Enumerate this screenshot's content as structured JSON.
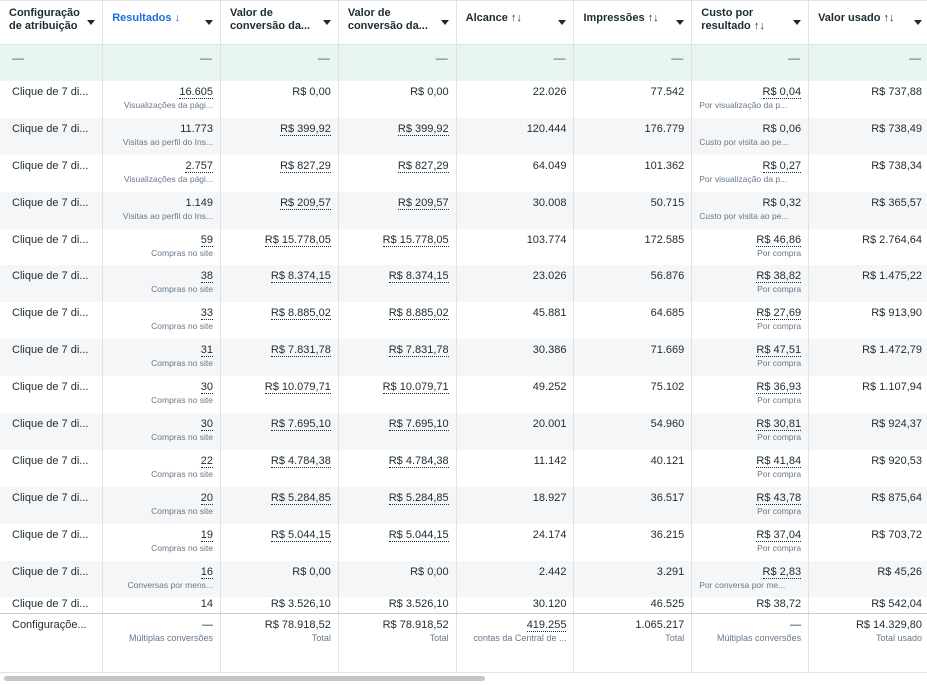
{
  "headers": [
    {
      "label": "Configuração de atribuição",
      "sort": "",
      "sorted": false
    },
    {
      "label": "Resultados",
      "sort": "↓",
      "sorted": true
    },
    {
      "label": "Valor de conversão da...",
      "sort": "",
      "sorted": false
    },
    {
      "label": "Valor de conversão da...",
      "sort": "",
      "sorted": false
    },
    {
      "label": "Alcance",
      "sort": "↑↓",
      "sorted": false
    },
    {
      "label": "Impressões",
      "sort": "↑↓",
      "sorted": false
    },
    {
      "label": "Custo por resultado",
      "sort": "↑↓",
      "sorted": false
    },
    {
      "label": "Valor usado",
      "sort": "↑↓",
      "sorted": false
    }
  ],
  "summary_top": [
    "—",
    "—",
    "—",
    "—",
    "—",
    "—",
    "—",
    "—"
  ],
  "rows": [
    {
      "attr": "Clique de 7 di...",
      "res": "16.605",
      "res_sub": "Visualizações da pági...",
      "cv1": "R$ 0,00",
      "cv2": "R$ 0,00",
      "reach": "22.026",
      "impr": "77.542",
      "cpr": "R$ 0,04",
      "cpr_sub": "Por visualização da p...",
      "spent": "R$ 737,88"
    },
    {
      "attr": "Clique de 7 di...",
      "res": "11.773",
      "res_sub": "Visitas ao perfil do Ins...",
      "cv1": "R$ 399,92",
      "cv2": "R$ 399,92",
      "reach": "120.444",
      "impr": "176.779",
      "cpr": "R$ 0,06",
      "cpr_sub": "Custo por visita ao pe...",
      "spent": "R$ 738,49"
    },
    {
      "attr": "Clique de 7 di...",
      "res": "2.757",
      "res_sub": "Visualizações da pági...",
      "cv1": "R$ 827,29",
      "cv2": "R$ 827,29",
      "reach": "64.049",
      "impr": "101.362",
      "cpr": "R$ 0,27",
      "cpr_sub": "Por visualização da p...",
      "spent": "R$ 738,34"
    },
    {
      "attr": "Clique de 7 di...",
      "res": "1.149",
      "res_sub": "Visitas ao perfil do Ins...",
      "cv1": "R$ 209,57",
      "cv2": "R$ 209,57",
      "reach": "30.008",
      "impr": "50.715",
      "cpr": "R$ 0,32",
      "cpr_sub": "Custo por visita ao pe...",
      "spent": "R$ 365,57"
    },
    {
      "attr": "Clique de 7 di...",
      "res": "59",
      "res_sub": "Compras no site",
      "cv1": "R$ 15.778,05",
      "cv2": "R$ 15.778,05",
      "reach": "103.774",
      "impr": "172.585",
      "cpr": "R$ 46,86",
      "cpr_sub": "Por compra",
      "spent": "R$ 2.764,64"
    },
    {
      "attr": "Clique de 7 di...",
      "res": "38",
      "res_sub": "Compras no site",
      "cv1": "R$ 8.374,15",
      "cv2": "R$ 8.374,15",
      "reach": "23.026",
      "impr": "56.876",
      "cpr": "R$ 38,82",
      "cpr_sub": "Por compra",
      "spent": "R$ 1.475,22"
    },
    {
      "attr": "Clique de 7 di...",
      "res": "33",
      "res_sub": "Compras no site",
      "cv1": "R$ 8.885,02",
      "cv2": "R$ 8.885,02",
      "reach": "45.881",
      "impr": "64.685",
      "cpr": "R$ 27,69",
      "cpr_sub": "Por compra",
      "spent": "R$ 913,90"
    },
    {
      "attr": "Clique de 7 di...",
      "res": "31",
      "res_sub": "Compras no site",
      "cv1": "R$ 7.831,78",
      "cv2": "R$ 7.831,78",
      "reach": "30.386",
      "impr": "71.669",
      "cpr": "R$ 47,51",
      "cpr_sub": "Por compra",
      "spent": "R$ 1.472,79"
    },
    {
      "attr": "Clique de 7 di...",
      "res": "30",
      "res_sub": "Compras no site",
      "cv1": "R$ 10.079,71",
      "cv2": "R$ 10.079,71",
      "reach": "49.252",
      "impr": "75.102",
      "cpr": "R$ 36,93",
      "cpr_sub": "Por compra",
      "spent": "R$ 1.107,94"
    },
    {
      "attr": "Clique de 7 di...",
      "res": "30",
      "res_sub": "Compras no site",
      "cv1": "R$ 7.695,10",
      "cv2": "R$ 7.695,10",
      "reach": "20.001",
      "impr": "54.960",
      "cpr": "R$ 30,81",
      "cpr_sub": "Por compra",
      "spent": "R$ 924,37"
    },
    {
      "attr": "Clique de 7 di...",
      "res": "22",
      "res_sub": "Compras no site",
      "cv1": "R$ 4.784,38",
      "cv2": "R$ 4.784,38",
      "reach": "11.142",
      "impr": "40.121",
      "cpr": "R$ 41,84",
      "cpr_sub": "Por compra",
      "spent": "R$ 920,53"
    },
    {
      "attr": "Clique de 7 di...",
      "res": "20",
      "res_sub": "Compras no site",
      "cv1": "R$ 5.284,85",
      "cv2": "R$ 5.284,85",
      "reach": "18.927",
      "impr": "36.517",
      "cpr": "R$ 43,78",
      "cpr_sub": "Por compra",
      "spent": "R$ 875,64"
    },
    {
      "attr": "Clique de 7 di...",
      "res": "19",
      "res_sub": "Compras no site",
      "cv1": "R$ 5.044,15",
      "cv2": "R$ 5.044,15",
      "reach": "24.174",
      "impr": "36.215",
      "cpr": "R$ 37,04",
      "cpr_sub": "Por compra",
      "spent": "R$ 703,72"
    },
    {
      "attr": "Clique de 7 di...",
      "res": "16",
      "res_sub": "Conversas por mens...",
      "cv1": "R$ 0,00",
      "cv2": "R$ 0,00",
      "reach": "2.442",
      "impr": "3.291",
      "cpr": "R$ 2,83",
      "cpr_sub": "Por conversa por me...",
      "spent": "R$ 45,26"
    }
  ],
  "partial_row": {
    "attr": "Clique de 7 di...",
    "res": "14",
    "cv1": "R$ 3.526,10",
    "cv2": "R$ 3.526,10",
    "reach": "30.120",
    "impr": "46.525",
    "cpr": "R$ 38,72",
    "spent": "R$ 542,04"
  },
  "totals": {
    "attr": "Configuraçõe...",
    "res": "—",
    "res_sub": "Múltiplas conversões",
    "cv1": "R$ 78.918,52",
    "cv1_sub": "Total",
    "cv2": "R$ 78.918,52",
    "cv2_sub": "Total",
    "reach": "419.255",
    "reach_sub": "contas da Central de ...",
    "impr": "1.065.217",
    "impr_sub": "Total",
    "cpr": "—",
    "cpr_sub": "Múltiplas conversões",
    "spent": "R$ 14.329,80",
    "spent_sub": "Total usado"
  },
  "colors": {
    "sorted_header": "#1a6ed8",
    "summary_bg": "#e9f6ef",
    "alt_row_bg": "#f5f6f7"
  }
}
